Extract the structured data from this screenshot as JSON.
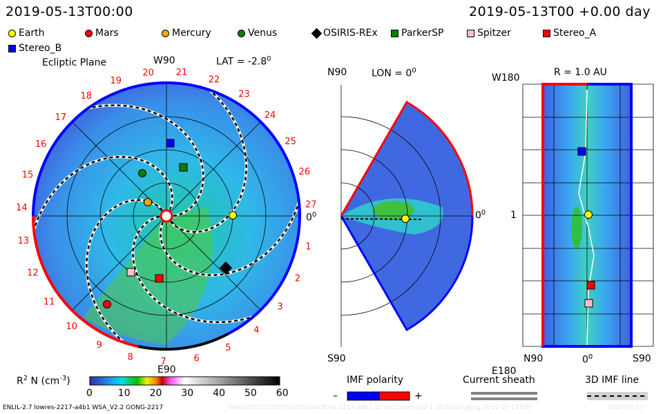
{
  "header": {
    "left_datetime": "2019-05-13T00:00",
    "right_datetime": "2019-05-13T00 +0.00 day"
  },
  "legend": [
    {
      "label": "Earth",
      "shape": "circle",
      "color": "#ffff00"
    },
    {
      "label": "Mars",
      "shape": "circle",
      "color": "#ff0000"
    },
    {
      "label": "Mercury",
      "shape": "circle",
      "color": "#ffa500"
    },
    {
      "label": "Venus",
      "shape": "circle",
      "color": "#008000"
    },
    {
      "label": "OSIRIS-REx",
      "shape": "diamond",
      "color": "#000000"
    },
    {
      "label": "ParkerSP",
      "shape": "square",
      "color": "#008000"
    },
    {
      "label": "Spitzer",
      "shape": "square",
      "color": "#ffc0cb"
    },
    {
      "label": "Stereo_A",
      "shape": "square",
      "color": "#ff0000"
    },
    {
      "label": "Stereo_B",
      "shape": "square",
      "color": "#0000ff"
    }
  ],
  "ecliptic": {
    "title": "Ecliptic Plane",
    "top": "W90",
    "bottom": "E90",
    "right": "0",
    "lat": "LAT = -2.8",
    "deg": "0",
    "day_labels": [
      "1",
      "2",
      "3",
      "4",
      "5",
      "6",
      "7",
      "8",
      "9",
      "10",
      "11",
      "12",
      "13",
      "14",
      "15",
      "16",
      "17",
      "18",
      "19",
      "20",
      "21",
      "22",
      "23",
      "24",
      "25",
      "26",
      "27"
    ]
  },
  "meridional": {
    "top": "N90",
    "bottom": "S90",
    "lon": "LON = 0",
    "deg": "0",
    "right": "0"
  },
  "radial": {
    "title": "R = 1.0 AU",
    "top": "W180",
    "bottom": "E180",
    "mid": "1",
    "x_left": "N90",
    "x_mid": "0",
    "x_right": "S90",
    "deg": "0"
  },
  "colorbar": {
    "label": "R",
    "label_sup": "2",
    "label_rest": " N (cm",
    "label_exp": "-3",
    "label_end": ")",
    "ticks": [
      "0",
      "10",
      "20",
      "30",
      "40",
      "50",
      "60"
    ]
  },
  "imf": {
    "title": "IMF polarity",
    "minus": "–",
    "plus": "+",
    "neg_color": "#0000ff",
    "pos_color": "#ff0000"
  },
  "sheath": {
    "title": "Current sheath"
  },
  "imfline": {
    "title": "3D IMF line"
  },
  "footer": {
    "model": "ENLIL-2.7 lowres-2217-a4b1 WSA_V2.2 GONG-2217",
    "run_id": "UNIQUE0513193750/256x30x90x1.2217-a4b1.32-mcp1umn1cd-1.g53q5d2.gong-2019-05-13T00",
    "run_date": "2019-05-13"
  }
}
